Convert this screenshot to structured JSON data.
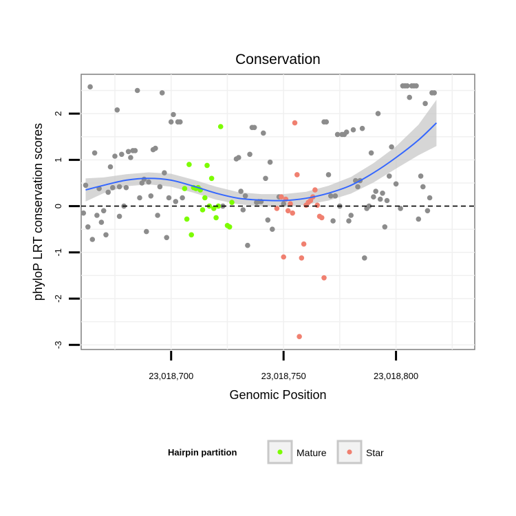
{
  "chart_data": {
    "type": "scatter",
    "title": "Conservation",
    "xlabel": "Genomic Position",
    "ylabel": "phyloP LRT conservation scores",
    "xlim": [
      23018660,
      23018835
    ],
    "ylim": [
      -3.1,
      2.85
    ],
    "x_ticks": [
      {
        "value": 23018700,
        "label": "23,018,700"
      },
      {
        "value": 23018750,
        "label": "23,018,750"
      },
      {
        "value": 23018800,
        "label": "23,018,800"
      }
    ],
    "y_ticks": [
      {
        "value": -3,
        "label": "-3"
      },
      {
        "value": -2,
        "label": "-2"
      },
      {
        "value": -1,
        "label": "-1"
      },
      {
        "value": 0,
        "label": "0"
      },
      {
        "value": 1,
        "label": "1"
      },
      {
        "value": 2,
        "label": "2"
      }
    ],
    "reference_line": {
      "y": 0,
      "style": "dashed"
    },
    "grid": true,
    "legend": {
      "title": "Hairpin partition",
      "position": "bottom",
      "entries": [
        {
          "label": "Mature",
          "color": "#7cfc00"
        },
        {
          "label": "Star",
          "color": "#f08070"
        }
      ]
    },
    "colors": {
      "other": "#8c8c8c",
      "smooth_line": "#3366ff",
      "ribbon": "#c8c8c8"
    },
    "series": [
      {
        "group": "other",
        "points": [
          [
            23018661,
            -0.15
          ],
          [
            23018662,
            0.45
          ],
          [
            23018663,
            -0.45
          ],
          [
            23018664,
            2.58
          ],
          [
            23018665,
            -0.72
          ],
          [
            23018666,
            1.15
          ],
          [
            23018667,
            -0.2
          ],
          [
            23018668,
            0.38
          ],
          [
            23018669,
            -0.35
          ],
          [
            23018670,
            -0.1
          ],
          [
            23018671,
            -0.62
          ],
          [
            23018672,
            0.3
          ],
          [
            23018673,
            0.85
          ],
          [
            23018674,
            0.4
          ],
          [
            23018675,
            1.08
          ],
          [
            23018676,
            2.08
          ],
          [
            23018677,
            -0.22
          ],
          [
            23018677,
            0.42
          ],
          [
            23018678,
            1.12
          ],
          [
            23018679,
            0.0
          ],
          [
            23018680,
            0.4
          ],
          [
            23018681,
            1.18
          ],
          [
            23018682,
            1.05
          ],
          [
            23018683,
            1.2
          ],
          [
            23018684,
            1.2
          ],
          [
            23018685,
            2.5
          ],
          [
            23018686,
            0.18
          ],
          [
            23018687,
            0.5
          ],
          [
            23018688,
            0.58
          ],
          [
            23018689,
            -0.55
          ],
          [
            23018690,
            0.52
          ],
          [
            23018691,
            0.22
          ],
          [
            23018692,
            1.22
          ],
          [
            23018693,
            1.25
          ],
          [
            23018694,
            -0.2
          ],
          [
            23018695,
            0.42
          ],
          [
            23018696,
            2.45
          ],
          [
            23018697,
            0.72
          ],
          [
            23018698,
            -0.68
          ],
          [
            23018699,
            0.18
          ],
          [
            23018700,
            1.82
          ],
          [
            23018701,
            1.98
          ],
          [
            23018702,
            0.1
          ],
          [
            23018703,
            1.82
          ],
          [
            23018704,
            1.82
          ],
          [
            23018705,
            0.18
          ],
          [
            23018723,
            0.0
          ],
          [
            23018729,
            1.02
          ],
          [
            23018730,
            1.05
          ],
          [
            23018731,
            0.32
          ],
          [
            23018732,
            -0.08
          ],
          [
            23018733,
            0.22
          ],
          [
            23018734,
            -0.85
          ],
          [
            23018735,
            1.12
          ],
          [
            23018736,
            1.7
          ],
          [
            23018737,
            1.7
          ],
          [
            23018738,
            0.08
          ],
          [
            23018739,
            0.1
          ],
          [
            23018740,
            0.1
          ],
          [
            23018741,
            1.58
          ],
          [
            23018742,
            0.6
          ],
          [
            23018743,
            -0.3
          ],
          [
            23018744,
            0.95
          ],
          [
            23018745,
            -0.5
          ],
          [
            23018748,
            0.2
          ],
          [
            23018750,
            0.05
          ],
          [
            23018768,
            1.82
          ],
          [
            23018769,
            1.82
          ],
          [
            23018770,
            0.68
          ],
          [
            23018771,
            0.22
          ],
          [
            23018772,
            -0.32
          ],
          [
            23018773,
            0.22
          ],
          [
            23018774,
            1.55
          ],
          [
            23018775,
            0.0
          ],
          [
            23018776,
            1.55
          ],
          [
            23018777,
            1.55
          ],
          [
            23018778,
            1.6
          ],
          [
            23018779,
            -0.32
          ],
          [
            23018780,
            -0.2
          ],
          [
            23018781,
            1.65
          ],
          [
            23018782,
            0.55
          ],
          [
            23018783,
            0.42
          ],
          [
            23018784,
            0.55
          ],
          [
            23018785,
            1.68
          ],
          [
            23018786,
            -1.12
          ],
          [
            23018787,
            -0.05
          ],
          [
            23018788,
            0.0
          ],
          [
            23018789,
            1.15
          ],
          [
            23018790,
            0.2
          ],
          [
            23018791,
            0.32
          ],
          [
            23018792,
            2.0
          ],
          [
            23018793,
            0.15
          ],
          [
            23018794,
            0.28
          ],
          [
            23018795,
            -0.45
          ],
          [
            23018796,
            0.12
          ],
          [
            23018797,
            0.65
          ],
          [
            23018798,
            1.28
          ],
          [
            23018800,
            0.48
          ],
          [
            23018802,
            -0.05
          ],
          [
            23018803,
            2.6
          ],
          [
            23018804,
            2.6
          ],
          [
            23018805,
            2.6
          ],
          [
            23018806,
            2.35
          ],
          [
            23018807,
            2.6
          ],
          [
            23018808,
            2.6
          ],
          [
            23018809,
            2.6
          ],
          [
            23018810,
            -0.28
          ],
          [
            23018811,
            0.65
          ],
          [
            23018812,
            0.42
          ],
          [
            23018813,
            2.22
          ],
          [
            23018814,
            -0.1
          ],
          [
            23018815,
            0.18
          ],
          [
            23018816,
            2.45
          ],
          [
            23018817,
            2.45
          ]
        ]
      },
      {
        "group": "Mature",
        "name": "Mature",
        "points": [
          [
            23018706,
            0.38
          ],
          [
            23018707,
            -0.28
          ],
          [
            23018708,
            0.9
          ],
          [
            23018709,
            -0.62
          ],
          [
            23018710,
            0.4
          ],
          [
            23018711,
            0.38
          ],
          [
            23018712,
            0.4
          ],
          [
            23018713,
            0.35
          ],
          [
            23018714,
            -0.08
          ],
          [
            23018715,
            0.18
          ],
          [
            23018716,
            0.88
          ],
          [
            23018717,
            0.0
          ],
          [
            23018718,
            0.6
          ],
          [
            23018719,
            -0.05
          ],
          [
            23018720,
            -0.25
          ],
          [
            23018721,
            0.0
          ],
          [
            23018722,
            1.72
          ],
          [
            23018725,
            -0.42
          ],
          [
            23018726,
            -0.45
          ],
          [
            23018727,
            0.08
          ]
        ]
      },
      {
        "group": "Star",
        "name": "Star",
        "points": [
          [
            23018747,
            -0.05
          ],
          [
            23018749,
            0.2
          ],
          [
            23018750,
            -1.1
          ],
          [
            23018751,
            0.15
          ],
          [
            23018752,
            -0.1
          ],
          [
            23018753,
            0.05
          ],
          [
            23018754,
            -0.15
          ],
          [
            23018755,
            1.8
          ],
          [
            23018756,
            0.68
          ],
          [
            23018757,
            -2.82
          ],
          [
            23018758,
            -1.12
          ],
          [
            23018759,
            -0.82
          ],
          [
            23018760,
            0.02
          ],
          [
            23018761,
            0.08
          ],
          [
            23018762,
            0.12
          ],
          [
            23018763,
            0.2
          ],
          [
            23018764,
            0.35
          ],
          [
            23018765,
            0.02
          ],
          [
            23018766,
            -0.22
          ],
          [
            23018767,
            -0.25
          ],
          [
            23018768,
            -1.55
          ]
        ]
      }
    ],
    "smooth": {
      "x": [
        23018662,
        23018670,
        23018680,
        23018690,
        23018700,
        23018710,
        23018720,
        23018730,
        23018740,
        23018750,
        23018760,
        23018770,
        23018780,
        23018790,
        23018800,
        23018810,
        23018818
      ],
      "y": [
        0.35,
        0.45,
        0.56,
        0.6,
        0.56,
        0.43,
        0.28,
        0.17,
        0.13,
        0.12,
        0.17,
        0.28,
        0.45,
        0.72,
        1.05,
        1.43,
        1.8
      ],
      "lower": [
        0.1,
        0.28,
        0.43,
        0.47,
        0.42,
        0.29,
        0.14,
        0.04,
        0.0,
        -0.02,
        0.03,
        0.12,
        0.27,
        0.51,
        0.81,
        1.1,
        1.3
      ],
      "upper": [
        0.6,
        0.62,
        0.69,
        0.73,
        0.7,
        0.57,
        0.42,
        0.3,
        0.26,
        0.26,
        0.31,
        0.44,
        0.63,
        0.93,
        1.29,
        1.76,
        2.3
      ]
    }
  }
}
